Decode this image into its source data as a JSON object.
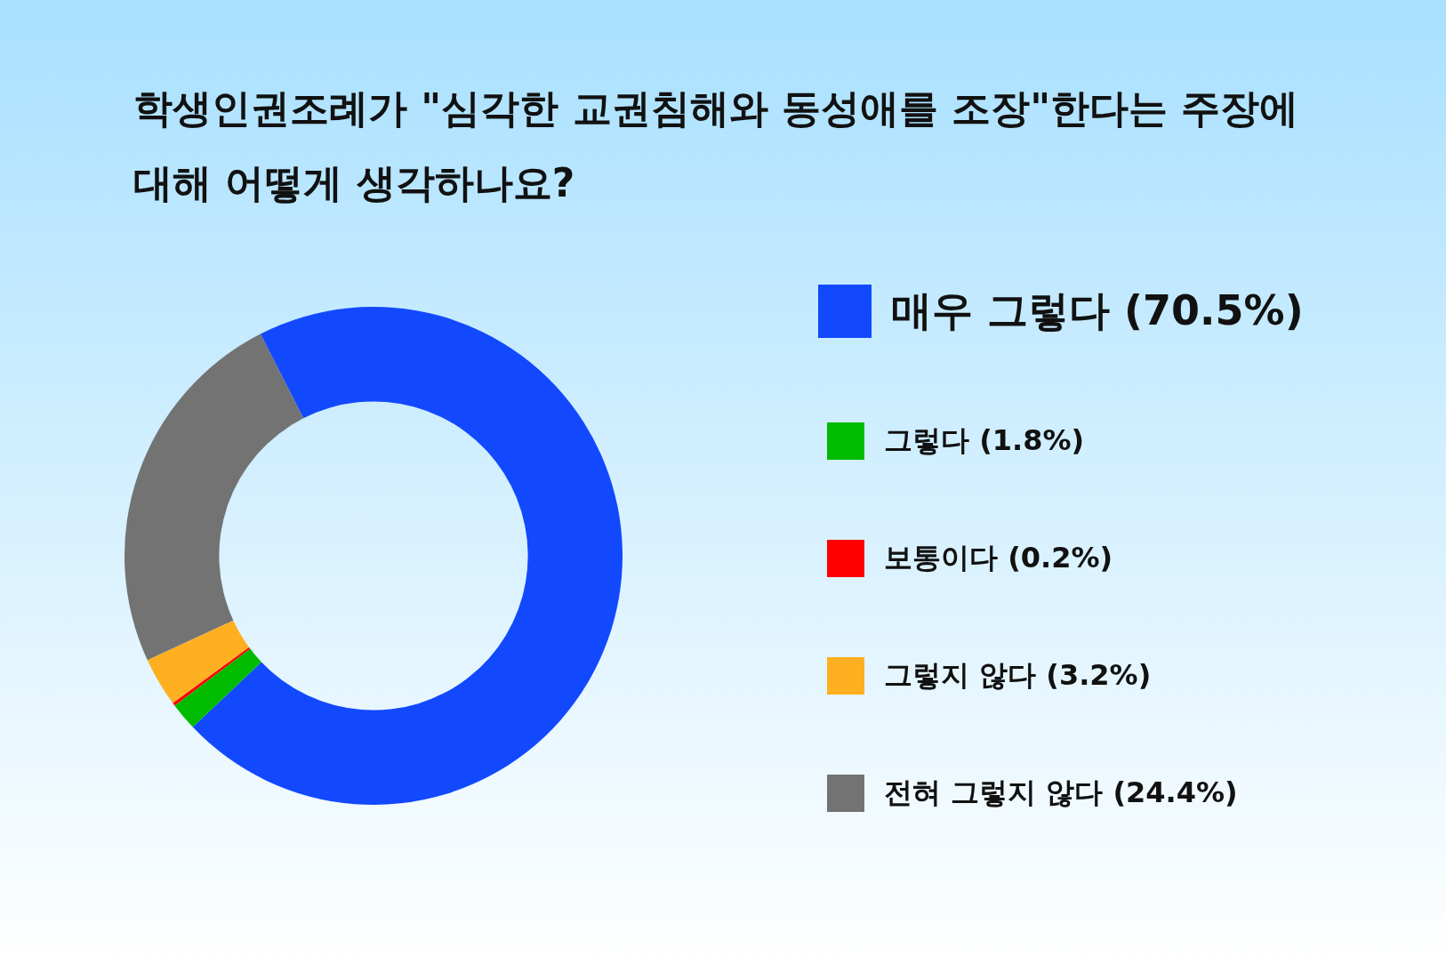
{
  "chart_data": {
    "type": "donut",
    "title": "학생인권조례가 \"심각한 교권침해와 동성애를 조장\"한다는 주장에 대해 어떻게 생각하나요?",
    "categories": [
      "매우 그렇다",
      "그렇다",
      "보통이다",
      "그렇지 않다",
      "전혀 그렇지 않다"
    ],
    "values": [
      70.5,
      1.8,
      0.2,
      3.2,
      24.4
    ],
    "value_labels": [
      "(70.5%)",
      "(1.8%)",
      "(0.2%)",
      "(3.2%)",
      "(24.4%)"
    ],
    "colors": [
      "#1249ff",
      "#00bb00",
      "#ff0000",
      "#ffb020",
      "#737373"
    ],
    "legend": "right"
  }
}
